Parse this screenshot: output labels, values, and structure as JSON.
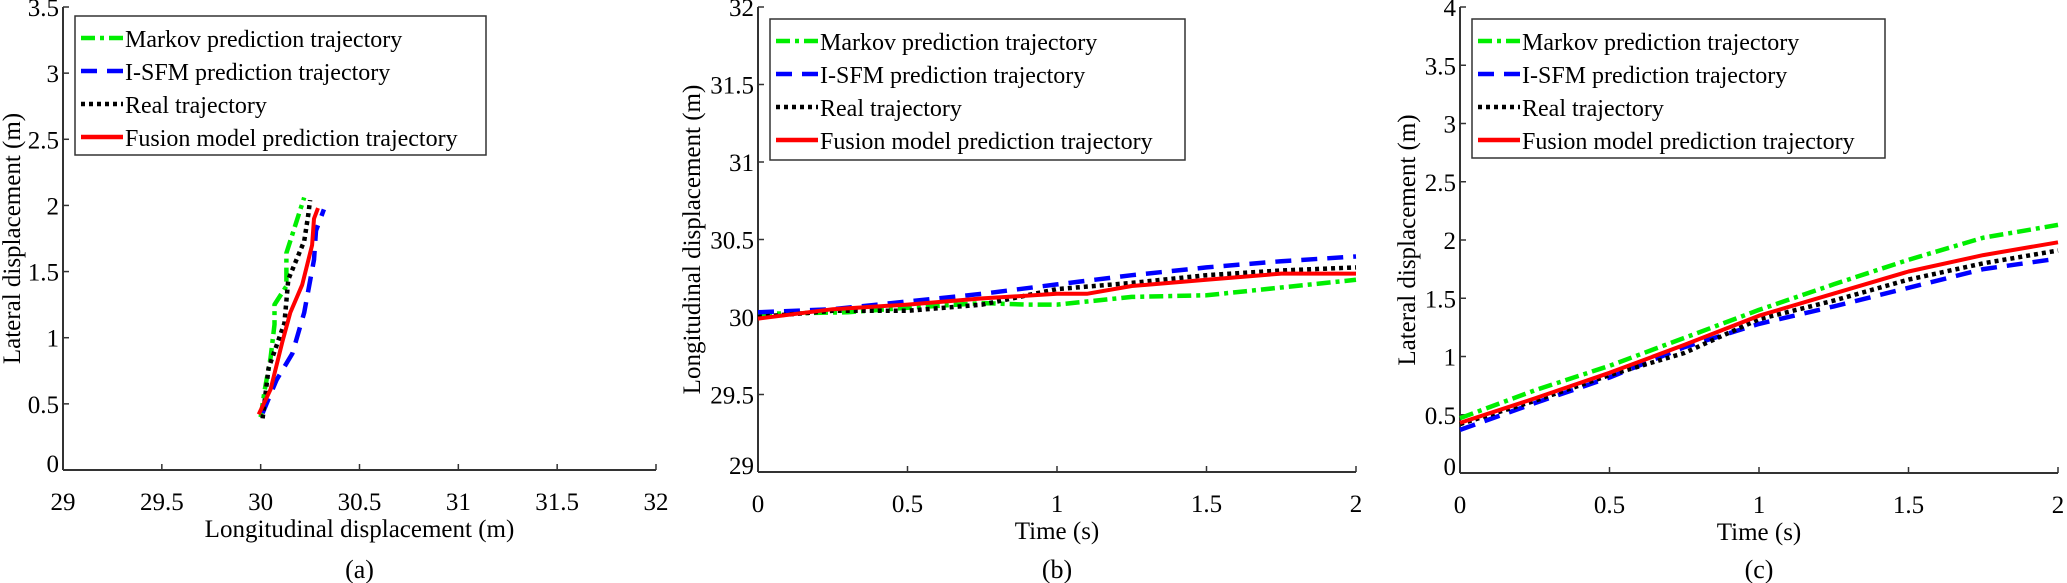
{
  "colors": {
    "markov": "#00ee00",
    "isfm": "#0000ff",
    "real": "#000000",
    "fusion": "#ff0000"
  },
  "chart_data": [
    {
      "type": "line",
      "caption": "(a)",
      "xlabel": "Longitudinal displacement (m)",
      "ylabel": "Lateral displacement (m)",
      "xlim": [
        29,
        32
      ],
      "ylim": [
        0,
        3.5
      ],
      "xticks": [
        "29",
        "29.5",
        "30",
        "30.5",
        "31",
        "31.5",
        "32"
      ],
      "yticks": [
        "0",
        "0.5",
        "1",
        "1.5",
        "2",
        "2.5",
        "3",
        "3.5"
      ],
      "grid": false,
      "legend": "top-left",
      "series": [
        {
          "name": "Markov prediction trajectory",
          "style": "dash-dot",
          "color": "#00ee00",
          "x": [
            30.0,
            30.02,
            30.05,
            30.07,
            30.07,
            30.13,
            30.13,
            30.22
          ],
          "y": [
            0.4,
            0.6,
            0.85,
            1.1,
            1.25,
            1.39,
            1.64,
            2.06
          ]
        },
        {
          "name": "I-SFM prediction trajectory",
          "style": "dashed",
          "color": "#0000ff",
          "x": [
            30.01,
            30.08,
            30.16,
            30.22,
            30.27,
            30.28,
            30.32
          ],
          "y": [
            0.43,
            0.68,
            0.88,
            1.19,
            1.59,
            1.81,
            1.97
          ]
        },
        {
          "name": "Real trajectory",
          "style": "dotted",
          "color": "#000000",
          "x": [
            30.01,
            30.04,
            30.12,
            30.14,
            30.22,
            30.24,
            30.25
          ],
          "y": [
            0.39,
            0.77,
            1.11,
            1.44,
            1.73,
            1.92,
            2.04
          ]
        },
        {
          "name": "Fusion model prediction trajectory",
          "style": "solid",
          "color": "#ff0000",
          "x": [
            29.99,
            30.05,
            30.11,
            30.15,
            30.21,
            30.26,
            30.27,
            30.29
          ],
          "y": [
            0.42,
            0.61,
            0.97,
            1.19,
            1.4,
            1.7,
            1.9,
            1.98
          ]
        }
      ]
    },
    {
      "type": "line",
      "caption": "(b)",
      "xlabel": "Time (s)",
      "ylabel": "Longitudinal displacement (m)",
      "xlim": [
        0,
        2
      ],
      "ylim": [
        29,
        32
      ],
      "xticks": [
        "0",
        "0.5",
        "1",
        "1.5",
        "2"
      ],
      "yticks": [
        "29",
        "29.5",
        "30",
        "30.5",
        "31",
        "31.5",
        "32"
      ],
      "grid": false,
      "legend": "top-left",
      "series": [
        {
          "name": "Markov prediction trajectory",
          "style": "dash-dot",
          "color": "#00ee00",
          "x": [
            0,
            0.3,
            0.5,
            0.75,
            0.9,
            1.0,
            1.25,
            1.5,
            1.75,
            2.0
          ],
          "y": [
            30.02,
            30.03,
            30.06,
            30.09,
            30.08,
            30.08,
            30.13,
            30.14,
            30.19,
            30.24
          ]
        },
        {
          "name": "I-SFM prediction trajectory",
          "style": "dashed",
          "color": "#0000ff",
          "x": [
            0,
            0.25,
            0.5,
            0.75,
            1.0,
            1.25,
            1.5,
            1.75,
            2.0
          ],
          "y": [
            30.03,
            30.05,
            30.1,
            30.15,
            30.21,
            30.27,
            30.32,
            30.36,
            30.39
          ]
        },
        {
          "name": "Real trajectory",
          "style": "dotted",
          "color": "#000000",
          "x": [
            0,
            0.25,
            0.5,
            0.75,
            1.0,
            1.25,
            1.5,
            1.75,
            2.0
          ],
          "y": [
            30.0,
            30.04,
            30.04,
            30.08,
            30.18,
            30.22,
            30.27,
            30.3,
            30.32
          ]
        },
        {
          "name": "Fusion model prediction trajectory",
          "style": "solid",
          "color": "#ff0000",
          "x": [
            0,
            0.25,
            0.5,
            0.75,
            1.0,
            1.1,
            1.25,
            1.5,
            1.75,
            2.0
          ],
          "y": [
            29.99,
            30.05,
            30.08,
            30.12,
            30.15,
            30.15,
            30.2,
            30.24,
            30.28,
            30.28
          ]
        }
      ]
    },
    {
      "type": "line",
      "caption": "(c)",
      "xlabel": "Time (s)",
      "ylabel": "Lateral displacement (m)",
      "xlim": [
        0,
        2
      ],
      "ylim": [
        0,
        4
      ],
      "xticks": [
        "0",
        "0.5",
        "1",
        "1.5",
        "2"
      ],
      "yticks": [
        "0",
        "0.5",
        "1",
        "1.5",
        "2",
        "2.5",
        "3",
        "3.5",
        "4"
      ],
      "grid": false,
      "legend": "top-left",
      "series": [
        {
          "name": "Markov prediction trajectory",
          "style": "dash-dot",
          "color": "#00ee00",
          "x": [
            0,
            0.25,
            0.5,
            0.75,
            1.0,
            1.25,
            1.5,
            1.75,
            2.0
          ],
          "y": [
            0.47,
            0.71,
            0.92,
            1.16,
            1.4,
            1.62,
            1.83,
            2.02,
            2.13
          ]
        },
        {
          "name": "I-SFM prediction trajectory",
          "style": "dashed",
          "color": "#0000ff",
          "x": [
            0,
            0.25,
            0.5,
            0.75,
            1.0,
            1.25,
            1.5,
            1.75,
            2.0
          ],
          "y": [
            0.37,
            0.6,
            0.82,
            1.08,
            1.28,
            1.43,
            1.59,
            1.75,
            1.84
          ]
        },
        {
          "name": "Real trajectory",
          "style": "dotted",
          "color": "#000000",
          "x": [
            0,
            0.25,
            0.5,
            0.75,
            1.0,
            1.25,
            1.5,
            1.75,
            2.0
          ],
          "y": [
            0.42,
            0.62,
            0.84,
            1.03,
            1.32,
            1.48,
            1.66,
            1.8,
            1.91
          ]
        },
        {
          "name": "Fusion model prediction trajectory",
          "style": "solid",
          "color": "#ff0000",
          "x": [
            0,
            0.25,
            0.5,
            0.75,
            1.0,
            1.25,
            1.5,
            1.75,
            2.0
          ],
          "y": [
            0.43,
            0.64,
            0.86,
            1.1,
            1.35,
            1.54,
            1.73,
            1.87,
            1.98
          ]
        }
      ]
    }
  ]
}
